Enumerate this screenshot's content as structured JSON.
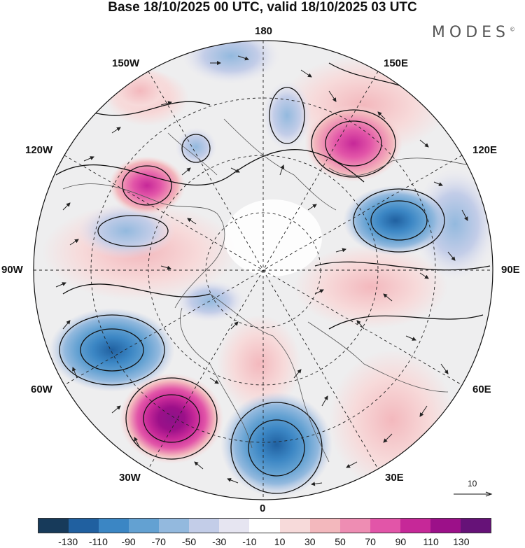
{
  "title": "Base 18/10/2025 00 UTC, valid 18/10/2025 03 UTC",
  "logo": "MODES",
  "logo_mark": "©",
  "longitude_labels": {
    "top": "180",
    "top_right": "150E",
    "top_left": "150W",
    "upper_right": "120E",
    "upper_left": "120W",
    "right": "90E",
    "left": "90W",
    "lower_right": "60E",
    "lower_left": "60W",
    "bottom_right": "30E",
    "bottom_left": "30W",
    "bottom": "0"
  },
  "vector_scale_label": "10",
  "colorbar": {
    "colors": [
      "#173a5a",
      "#2060a0",
      "#3b86c4",
      "#63a1d2",
      "#93b9de",
      "#c3cde8",
      "#e6e5f1",
      "#ffffff",
      "#f7dada",
      "#f3b8bd",
      "#ee8db3",
      "#e255a8",
      "#c62898",
      "#9c1089",
      "#661278"
    ],
    "tick_labels": [
      "-130",
      "-110",
      "-90",
      "-70",
      "-50",
      "-30",
      "-10",
      "10",
      "30",
      "50",
      "70",
      "90",
      "110",
      "130"
    ]
  },
  "colors": {
    "ocean_disc": "#eeeeef",
    "coast": "#555555",
    "grid": "#222222"
  }
}
